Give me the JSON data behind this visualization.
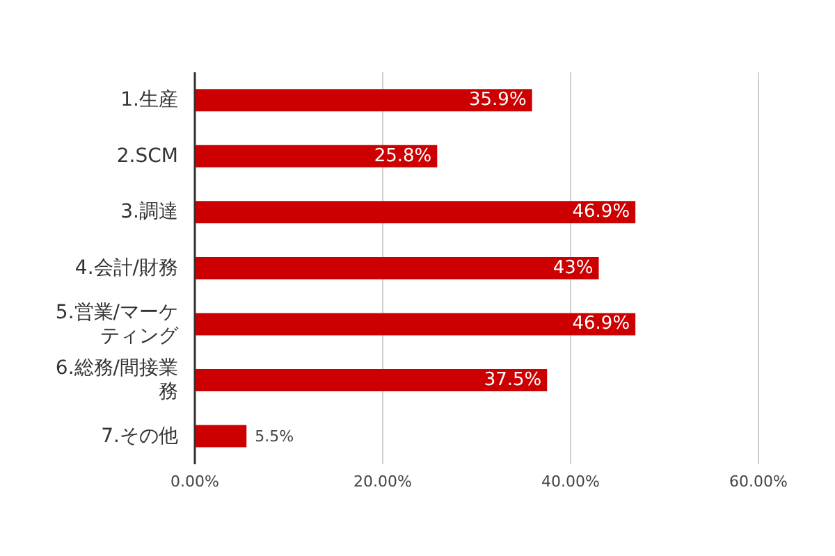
{
  "chart_data": {
    "type": "bar",
    "orientation": "horizontal",
    "categories": [
      "1.生産",
      "2.SCM",
      "3.調達",
      "4.会計/財務",
      "5.営業/マーケティング",
      "6.総務/間接業務",
      "7.その他"
    ],
    "values": [
      35.9,
      25.8,
      46.9,
      43,
      46.9,
      37.5,
      5.5
    ],
    "value_labels": [
      "35.9%",
      "25.8%",
      "46.9%",
      "43%",
      "46.9%",
      "37.5%",
      "5.5%"
    ],
    "color": "#cc0000",
    "xlim": [
      0,
      60
    ],
    "xticks": [
      {
        "value": 0,
        "label": "0.00%"
      },
      {
        "value": 20,
        "label": "20.00%"
      },
      {
        "value": 40,
        "label": "40.00%"
      },
      {
        "value": 60,
        "label": "60.00%"
      }
    ],
    "grid": "x"
  }
}
